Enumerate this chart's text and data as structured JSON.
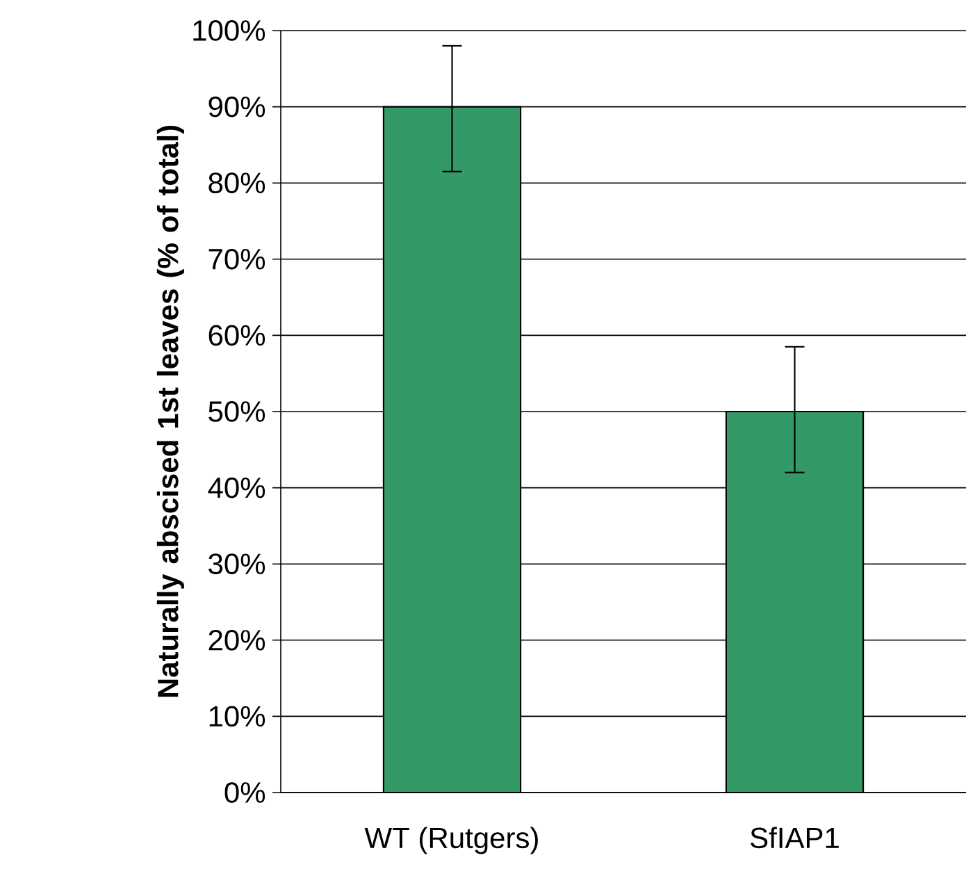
{
  "chart_data": {
    "type": "bar",
    "ylabel": "Naturally abscised 1st  leaves (% of total)",
    "categories": [
      "WT (Rutgers)",
      "SfIAP1"
    ],
    "values": [
      90,
      50
    ],
    "errors": [
      [
        81.5,
        98
      ],
      [
        42,
        58.5
      ]
    ],
    "color": "#339966",
    "ylim": [
      0,
      100
    ],
    "yticks": [
      {
        "value": 0,
        "label": "0%"
      },
      {
        "value": 10,
        "label": "10%"
      },
      {
        "value": 20,
        "label": "20%"
      },
      {
        "value": 30,
        "label": "30%"
      },
      {
        "value": 40,
        "label": "40%"
      },
      {
        "value": 50,
        "label": "50%"
      },
      {
        "value": 60,
        "label": "60%"
      },
      {
        "value": 70,
        "label": "70%"
      },
      {
        "value": 80,
        "label": "80%"
      },
      {
        "value": 90,
        "label": "90%"
      },
      {
        "value": 100,
        "label": "100%"
      }
    ],
    "grid": "y"
  }
}
